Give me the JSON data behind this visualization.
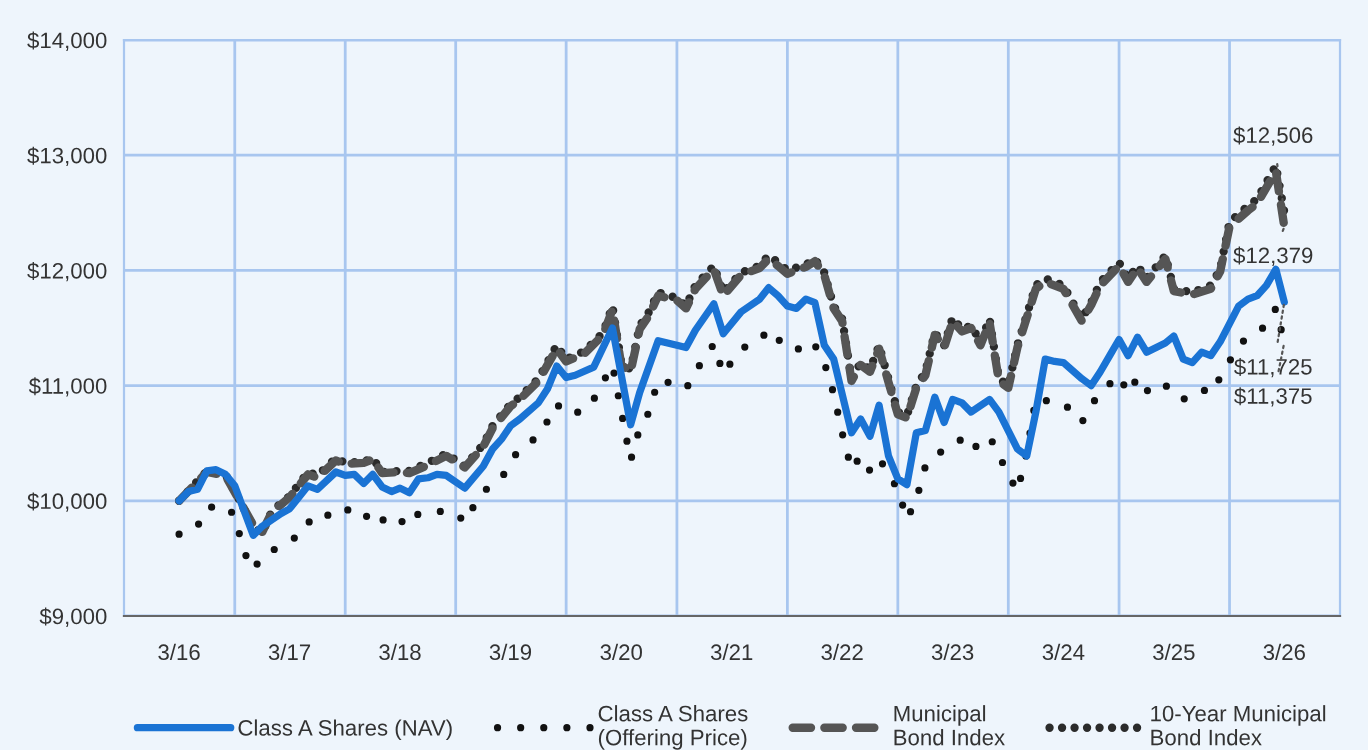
{
  "chart_data": {
    "type": "line",
    "xlim": [
      "2015-09-01",
      "2026-09-01"
    ],
    "ylim": [
      9000,
      14000
    ],
    "xticks": [
      {
        "value": "2016-03",
        "label": "3/16"
      },
      {
        "value": "2017-03",
        "label": "3/17"
      },
      {
        "value": "2018-03",
        "label": "3/18"
      },
      {
        "value": "2019-03",
        "label": "3/19"
      },
      {
        "value": "2020-03",
        "label": "3/20"
      },
      {
        "value": "2021-03",
        "label": "3/21"
      },
      {
        "value": "2022-03",
        "label": "3/22"
      },
      {
        "value": "2023-03",
        "label": "3/23"
      },
      {
        "value": "2024-03",
        "label": "3/24"
      },
      {
        "value": "2025-03",
        "label": "3/25"
      },
      {
        "value": "2026-03",
        "label": "3/26"
      },
      {
        "value": "2016-09",
        "label": null
      },
      {
        "value": "2017-09",
        "label": null
      },
      {
        "value": "2018-09",
        "label": null
      },
      {
        "value": "2019-09",
        "label": null
      },
      {
        "value": "2020-09",
        "label": null
      },
      {
        "value": "2021-09",
        "label": null
      },
      {
        "value": "2022-09",
        "label": null
      },
      {
        "value": "2023-09",
        "label": null
      },
      {
        "value": "2024-09",
        "label": null
      },
      {
        "value": "2025-09",
        "label": null
      }
    ],
    "yticks": [
      {
        "value": 9000,
        "label": "$9,000"
      },
      {
        "value": 10000,
        "label": "$10,000"
      },
      {
        "value": 11000,
        "label": "$11,000"
      },
      {
        "value": 12000,
        "label": "$12,000"
      },
      {
        "value": 13000,
        "label": "$13,000"
      },
      {
        "value": 14000,
        "label": "$14,000"
      }
    ],
    "grid": true,
    "legend": "bottom",
    "marker": "none",
    "series": [
      {
        "name": "Class A Shares (NAV)",
        "color": "#1a73d4",
        "line_style": "solid",
        "x": [
          "2016-03",
          "2016-04",
          "2016-05",
          "2016-06",
          "2016-07",
          "2016-08",
          "2016-09",
          "2016-11",
          "2016-12",
          "2017-02",
          "2017-03",
          "2017-05",
          "2017-06",
          "2017-08",
          "2017-09",
          "2017-10",
          "2017-11",
          "2017-12",
          "2018-01",
          "2018-02",
          "2018-03",
          "2018-04",
          "2018-05",
          "2018-06",
          "2018-07",
          "2018-08",
          "2018-10",
          "2018-12",
          "2019-01",
          "2019-02",
          "2019-03",
          "2019-04",
          "2019-06",
          "2019-07",
          "2019-08",
          "2019-09",
          "2019-10",
          "2019-12",
          "2020-02",
          "2020-04",
          "2020-05",
          "2020-07",
          "2020-09",
          "2020-10",
          "2020-11",
          "2021-01",
          "2021-02",
          "2021-04",
          "2021-06",
          "2021-07",
          "2021-08",
          "2021-09",
          "2021-10",
          "2021-11",
          "2021-12",
          "2022-01",
          "2022-02",
          "2022-04",
          "2022-05",
          "2022-06",
          "2022-07",
          "2022-08",
          "2022-09",
          "2022-10",
          "2022-11",
          "2022-12",
          "2023-01",
          "2023-02",
          "2023-03",
          "2023-04",
          "2023-05",
          "2023-07",
          "2023-08",
          "2023-10",
          "2023-11",
          "2023-12",
          "2024-01",
          "2024-02",
          "2024-03",
          "2024-05",
          "2024-06",
          "2024-07",
          "2024-08",
          "2024-09",
          "2024-10",
          "2024-11",
          "2024-12",
          "2025-02",
          "2025-03",
          "2025-04",
          "2025-05",
          "2025-06",
          "2025-07",
          "2025-08",
          "2025-10",
          "2025-11",
          "2025-12",
          "2026-01",
          "2026-02",
          "2026-03"
        ],
        "values": [
          10000,
          10080,
          10100,
          10260,
          10270,
          10230,
          10130,
          9700,
          9780,
          9890,
          9930,
          10130,
          10100,
          10250,
          10220,
          10230,
          10150,
          10230,
          10120,
          10080,
          10110,
          10070,
          10190,
          10200,
          10230,
          10220,
          10110,
          10300,
          10450,
          10540,
          10650,
          10710,
          10850,
          10970,
          11170,
          11070,
          11090,
          11160,
          11500,
          10660,
          10940,
          11390,
          11350,
          11330,
          11480,
          11710,
          11450,
          11640,
          11750,
          11850,
          11780,
          11690,
          11670,
          11750,
          11720,
          11350,
          11230,
          10590,
          10710,
          10560,
          10830,
          10390,
          10190,
          10140,
          10590,
          10610,
          10900,
          10680,
          10880,
          10850,
          10770,
          10880,
          10770,
          10450,
          10390,
          10770,
          11230,
          11210,
          11200,
          11060,
          11000,
          11120,
          11260,
          11400,
          11260,
          11420,
          11290,
          11370,
          11430,
          11230,
          11200,
          11290,
          11260,
          11380,
          11690,
          11750,
          11780,
          11870,
          12010,
          11725
        ]
      },
      {
        "name": "Class A Shares\n(Offering Price)",
        "color": "#111111",
        "line_style": "dotted",
        "x": [
          "2016-03",
          "2016-04",
          "2016-05",
          "2016-06",
          "2016-08",
          "2016-09",
          "2016-10",
          "2016-11",
          "2016-12",
          "2017-02",
          "2017-04",
          "2017-05",
          "2017-06",
          "2017-08",
          "2017-10",
          "2017-11",
          "2017-12",
          "2018-01",
          "2018-02",
          "2018-03",
          "2018-04",
          "2018-05",
          "2018-07",
          "2018-09",
          "2018-10",
          "2018-11",
          "2018-12",
          "2019-02",
          "2019-03",
          "2019-04",
          "2019-06",
          "2019-07",
          "2019-08",
          "2019-09",
          "2019-11",
          "2019-12",
          "2020-02",
          "2020-04",
          "2020-05",
          "2020-06",
          "2020-07",
          "2020-09",
          "2020-10",
          "2020-11",
          "2020-12",
          "2021-01",
          "2021-02",
          "2021-03",
          "2021-04",
          "2021-06",
          "2021-07",
          "2021-08",
          "2021-10",
          "2021-11",
          "2021-12",
          "2022-01",
          "2022-02",
          "2022-03",
          "2022-04",
          "2022-05",
          "2022-06",
          "2022-07",
          "2022-09",
          "2022-10",
          "2022-11",
          "2022-12",
          "2023-01",
          "2023-03",
          "2023-04",
          "2023-05",
          "2023-07",
          "2023-09",
          "2023-10",
          "2023-11",
          "2023-12",
          "2024-01",
          "2024-03",
          "2024-05",
          "2024-06",
          "2024-07",
          "2024-09",
          "2024-10",
          "2024-11",
          "2024-12",
          "2025-01",
          "2025-03",
          "2025-04",
          "2025-06",
          "2025-07",
          "2025-09",
          "2025-10",
          "2025-11",
          "2026-01",
          "2026-02",
          "2026-03"
        ],
        "values": [
          9710,
          9770,
          9780,
          9940,
          9960,
          9870,
          9560,
          9400,
          9520,
          9610,
          9700,
          9820,
          9790,
          9940,
          9910,
          9840,
          9920,
          9840,
          9780,
          9830,
          9780,
          9890,
          9910,
          9900,
          9810,
          9960,
          10080,
          10200,
          10340,
          10450,
          10560,
          10690,
          10840,
          10750,
          10780,
          10880,
          11180,
          10350,
          10630,
          10770,
          11050,
          11010,
          10970,
          11120,
          11240,
          11360,
          11100,
          11210,
          11320,
          11390,
          11490,
          11400,
          11300,
          11390,
          11350,
          11200,
          10930,
          10590,
          10270,
          10390,
          10260,
          10370,
          10100,
          9840,
          10010,
          10300,
          10400,
          10470,
          10540,
          10440,
          10560,
          10230,
          10080,
          10420,
          10890,
          10870,
          10850,
          10680,
          10830,
          10940,
          11090,
          10930,
          11070,
          10950,
          11030,
          10970,
          10880,
          10970,
          10930,
          11210,
          11350,
          11420,
          11520,
          11670,
          11375
        ]
      },
      {
        "name": "Municipal\nBond Index",
        "color": "#555555",
        "line_style": "dashed",
        "x": [
          "2016-03",
          "2016-06",
          "2016-08",
          "2016-11",
          "2016-12",
          "2017-01",
          "2017-03",
          "2017-05",
          "2017-06",
          "2017-08",
          "2017-09",
          "2017-11",
          "2017-12",
          "2018-01",
          "2018-03",
          "2018-04",
          "2018-06",
          "2018-08",
          "2018-10",
          "2018-12",
          "2019-01",
          "2019-03",
          "2019-04",
          "2019-06",
          "2019-08",
          "2019-09",
          "2019-11",
          "2020-01",
          "2020-02",
          "2020-03",
          "2020-04",
          "2020-05",
          "2020-06",
          "2020-07",
          "2020-09",
          "2020-10",
          "2020-11",
          "2021-01",
          "2021-02",
          "2021-04",
          "2021-06",
          "2021-07",
          "2021-08",
          "2021-09",
          "2021-11",
          "2021-12",
          "2022-01",
          "2022-02",
          "2022-03",
          "2022-04",
          "2022-05",
          "2022-06",
          "2022-07",
          "2022-08",
          "2022-09",
          "2022-10",
          "2022-11",
          "2022-12",
          "2023-01",
          "2023-02",
          "2023-03",
          "2023-04",
          "2023-05",
          "2023-06",
          "2023-07",
          "2023-08",
          "2023-09",
          "2023-10",
          "2023-12",
          "2024-01",
          "2024-03",
          "2024-05",
          "2024-06",
          "2024-07",
          "2024-09",
          "2024-10",
          "2024-11",
          "2024-12",
          "2025-02",
          "2025-03",
          "2025-05",
          "2025-07",
          "2025-08",
          "2025-09",
          "2025-11",
          "2025-12",
          "2026-02",
          "2026-03"
        ],
        "values": [
          10000,
          10250,
          10220,
          9790,
          9730,
          9900,
          10030,
          10230,
          10200,
          10350,
          10320,
          10330,
          10360,
          10240,
          10250,
          10240,
          10310,
          10390,
          10290,
          10470,
          10630,
          10820,
          10880,
          11040,
          11320,
          11210,
          11280,
          11440,
          11660,
          11180,
          11120,
          11490,
          11610,
          11780,
          11740,
          11670,
          11840,
          12010,
          11780,
          11960,
          12020,
          12100,
          12040,
          11970,
          12030,
          12080,
          11960,
          11670,
          11560,
          11040,
          11180,
          11120,
          11320,
          11030,
          10750,
          10720,
          10980,
          11090,
          11440,
          11330,
          11560,
          11470,
          11500,
          11350,
          11550,
          11040,
          10980,
          11330,
          11840,
          11900,
          11840,
          11560,
          11700,
          11870,
          12040,
          11900,
          12020,
          11900,
          12100,
          11820,
          11790,
          11840,
          11990,
          12380,
          12520,
          12580,
          12860,
          12379
        ]
      },
      {
        "name": "10-Year Municipal\nBond Index",
        "color": "#2b2b2b",
        "line_style": "dotted",
        "x": [
          "2016-03",
          "2016-06",
          "2016-08",
          "2016-11",
          "2016-12",
          "2017-01",
          "2017-03",
          "2017-05",
          "2017-06",
          "2017-08",
          "2017-09",
          "2017-11",
          "2017-12",
          "2018-01",
          "2018-03",
          "2018-04",
          "2018-06",
          "2018-08",
          "2018-10",
          "2018-12",
          "2019-01",
          "2019-03",
          "2019-04",
          "2019-06",
          "2019-08",
          "2019-09",
          "2019-11",
          "2020-01",
          "2020-02",
          "2020-03",
          "2020-04",
          "2020-05",
          "2020-06",
          "2020-07",
          "2020-09",
          "2020-10",
          "2020-11",
          "2021-01",
          "2021-02",
          "2021-04",
          "2021-06",
          "2021-07",
          "2021-08",
          "2021-09",
          "2021-11",
          "2021-12",
          "2022-01",
          "2022-02",
          "2022-03",
          "2022-04",
          "2022-05",
          "2022-06",
          "2022-07",
          "2022-08",
          "2022-09",
          "2022-10",
          "2022-11",
          "2022-12",
          "2023-01",
          "2023-02",
          "2023-03",
          "2023-04",
          "2023-05",
          "2023-06",
          "2023-07",
          "2023-08",
          "2023-09",
          "2023-10",
          "2023-12",
          "2024-01",
          "2024-03",
          "2024-05",
          "2024-06",
          "2024-07",
          "2024-09",
          "2024-10",
          "2024-11",
          "2024-12",
          "2025-02",
          "2025-03",
          "2025-05",
          "2025-07",
          "2025-08",
          "2025-09",
          "2025-11",
          "2025-12",
          "2026-02",
          "2026-03"
        ],
        "values": [
          10000,
          10260,
          10230,
          9780,
          9720,
          9910,
          10040,
          10250,
          10220,
          10370,
          10330,
          10340,
          10370,
          10250,
          10260,
          10260,
          10330,
          10410,
          10300,
          10490,
          10650,
          10840,
          10900,
          11060,
          11350,
          11230,
          11300,
          11460,
          11690,
          11200,
          11140,
          11520,
          11640,
          11810,
          11760,
          11690,
          11870,
          12040,
          11810,
          11980,
          12040,
          12130,
          12070,
          12000,
          12050,
          12100,
          11980,
          11690,
          11580,
          11060,
          11200,
          11140,
          11350,
          11060,
          10770,
          10740,
          11000,
          11120,
          11460,
          11350,
          11590,
          11490,
          11520,
          11380,
          11580,
          11060,
          11000,
          11350,
          11870,
          11930,
          11870,
          11580,
          11720,
          11900,
          12070,
          11930,
          12040,
          11930,
          12130,
          11840,
          11810,
          11870,
          12010,
          12420,
          12560,
          12620,
          12910,
          12506
        ]
      }
    ],
    "annotations": [
      {
        "text": "$12,506",
        "x": "2026-03",
        "y": 12506
      },
      {
        "text": "$12,379",
        "x": "2026-03",
        "y": 12379
      },
      {
        "text": "$11,725",
        "x": "2026-03",
        "y": 11725
      },
      {
        "text": "$11,375",
        "x": "2026-03",
        "y": 11375
      }
    ]
  }
}
